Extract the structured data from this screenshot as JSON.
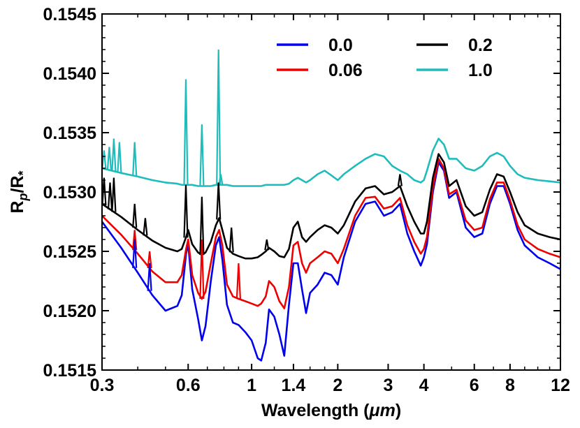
{
  "chart_data": {
    "type": "line",
    "title": "",
    "xlabel": "Wavelength (μm)",
    "xlabel_prefix": "Wavelength (",
    "xlabel_unit": "μm",
    "xlabel_suffix": ")",
    "ylabel": "Rp/R*",
    "ylabel_main": "R",
    "ylabel_p": "p",
    "ylabel_div": "/R",
    "ylabel_star": "*",
    "x_scale": "log",
    "xlim": [
      0.3,
      12
    ],
    "ylim": [
      0.1515,
      0.1545
    ],
    "x_ticks": [
      {
        "value": 0.3,
        "label": "0.3"
      },
      {
        "value": 0.6,
        "label": "0.6"
      },
      {
        "value": 1,
        "label": "1"
      },
      {
        "value": 1.4,
        "label": "1.4"
      },
      {
        "value": 2,
        "label": "2"
      },
      {
        "value": 3,
        "label": "3"
      },
      {
        "value": 4,
        "label": "4"
      },
      {
        "value": 6,
        "label": "6"
      },
      {
        "value": 8,
        "label": "8"
      },
      {
        "value": 12,
        "label": "12"
      }
    ],
    "y_ticks": [
      {
        "value": 0.1515,
        "label": "0.1515"
      },
      {
        "value": 0.152,
        "label": "0.1520"
      },
      {
        "value": 0.1525,
        "label": "0.1525"
      },
      {
        "value": 0.153,
        "label": "0.1530"
      },
      {
        "value": 0.1535,
        "label": "0.1535"
      },
      {
        "value": 0.154,
        "label": "0.1540"
      },
      {
        "value": 0.1545,
        "label": "0.1545"
      }
    ],
    "legend_position": "top-right",
    "series": [
      {
        "name": "0.0",
        "color": "#0000ee",
        "x": [
          0.3,
          0.35,
          0.4,
          0.45,
          0.5,
          0.55,
          0.57,
          0.59,
          0.6,
          0.62,
          0.65,
          0.67,
          0.69,
          0.72,
          0.75,
          0.77,
          0.79,
          0.82,
          0.86,
          0.9,
          0.95,
          1.0,
          1.05,
          1.08,
          1.12,
          1.15,
          1.2,
          1.25,
          1.3,
          1.35,
          1.4,
          1.45,
          1.5,
          1.55,
          1.6,
          1.7,
          1.8,
          1.9,
          2.0,
          2.1,
          2.3,
          2.5,
          2.7,
          2.9,
          3.1,
          3.3,
          3.5,
          3.7,
          3.9,
          4.0,
          4.1,
          4.3,
          4.5,
          4.7,
          4.9,
          5.2,
          5.6,
          6.0,
          6.4,
          6.8,
          7.2,
          7.6,
          8.0,
          8.5,
          9.0,
          10.0,
          11.0,
          12.0
        ],
        "y": [
          0.15275,
          0.15253,
          0.15232,
          0.15213,
          0.152,
          0.15204,
          0.15213,
          0.15248,
          0.15256,
          0.15218,
          0.15193,
          0.15175,
          0.15187,
          0.15225,
          0.15255,
          0.15262,
          0.15243,
          0.15205,
          0.1519,
          0.15188,
          0.15182,
          0.15175,
          0.1516,
          0.15158,
          0.15173,
          0.15201,
          0.15195,
          0.1518,
          0.15162,
          0.15205,
          0.1524,
          0.1524,
          0.15218,
          0.15198,
          0.15215,
          0.15222,
          0.15232,
          0.1523,
          0.15222,
          0.15245,
          0.15275,
          0.1529,
          0.15292,
          0.1528,
          0.15283,
          0.1529,
          0.15265,
          0.1525,
          0.15238,
          0.15245,
          0.15256,
          0.153,
          0.15325,
          0.15318,
          0.15295,
          0.153,
          0.1527,
          0.15262,
          0.15265,
          0.1529,
          0.15305,
          0.15305,
          0.1529,
          0.15268,
          0.15255,
          0.15245,
          0.1524,
          0.15235
        ]
      },
      {
        "name": "0.06",
        "color": "#ee0000",
        "x": [
          0.3,
          0.35,
          0.4,
          0.45,
          0.5,
          0.55,
          0.57,
          0.59,
          0.6,
          0.62,
          0.65,
          0.67,
          0.69,
          0.72,
          0.75,
          0.77,
          0.79,
          0.82,
          0.86,
          0.9,
          0.95,
          1.0,
          1.05,
          1.08,
          1.12,
          1.15,
          1.2,
          1.25,
          1.3,
          1.35,
          1.4,
          1.45,
          1.5,
          1.55,
          1.6,
          1.7,
          1.8,
          1.9,
          2.0,
          2.1,
          2.3,
          2.5,
          2.7,
          2.9,
          3.1,
          3.3,
          3.5,
          3.7,
          3.9,
          4.0,
          4.1,
          4.3,
          4.5,
          4.7,
          4.9,
          5.2,
          5.6,
          6.0,
          6.4,
          6.8,
          7.2,
          7.6,
          8.0,
          8.5,
          9.0,
          10.0,
          11.0,
          12.0
        ],
        "y": [
          0.1528,
          0.15264,
          0.15248,
          0.15233,
          0.15224,
          0.15224,
          0.1523,
          0.15252,
          0.1526,
          0.1523,
          0.15215,
          0.1521,
          0.15216,
          0.1524,
          0.15262,
          0.15268,
          0.15255,
          0.15222,
          0.15212,
          0.1521,
          0.15208,
          0.15206,
          0.15204,
          0.15206,
          0.15212,
          0.15225,
          0.1522,
          0.15208,
          0.15202,
          0.1522,
          0.15255,
          0.15258,
          0.1524,
          0.15232,
          0.1524,
          0.15245,
          0.1525,
          0.15248,
          0.1524,
          0.15252,
          0.1528,
          0.15295,
          0.15296,
          0.15286,
          0.15288,
          0.15295,
          0.15272,
          0.15258,
          0.15248,
          0.15252,
          0.15262,
          0.15304,
          0.15328,
          0.1532,
          0.15298,
          0.15302,
          0.15276,
          0.15268,
          0.1527,
          0.15294,
          0.15308,
          0.15308,
          0.15293,
          0.15272,
          0.1526,
          0.15252,
          0.15248,
          0.15245
        ]
      },
      {
        "name": "0.2",
        "color": "#000000",
        "x": [
          0.3,
          0.35,
          0.4,
          0.45,
          0.5,
          0.55,
          0.57,
          0.59,
          0.6,
          0.62,
          0.65,
          0.67,
          0.69,
          0.72,
          0.75,
          0.77,
          0.79,
          0.82,
          0.86,
          0.9,
          0.95,
          1.0,
          1.05,
          1.08,
          1.12,
          1.15,
          1.2,
          1.25,
          1.3,
          1.35,
          1.4,
          1.45,
          1.5,
          1.55,
          1.6,
          1.7,
          1.8,
          1.9,
          2.0,
          2.1,
          2.3,
          2.5,
          2.7,
          2.9,
          3.1,
          3.3,
          3.5,
          3.7,
          3.9,
          4.0,
          4.1,
          4.3,
          4.5,
          4.7,
          4.9,
          5.2,
          5.6,
          6.0,
          6.4,
          6.8,
          7.2,
          7.6,
          8.0,
          8.5,
          9.0,
          10.0,
          11.0,
          12.0
        ],
        "y": [
          0.1529,
          0.15279,
          0.15268,
          0.15259,
          0.15253,
          0.1525,
          0.15252,
          0.15262,
          0.15268,
          0.15256,
          0.15249,
          0.15247,
          0.15249,
          0.15258,
          0.15272,
          0.15278,
          0.15268,
          0.15253,
          0.15248,
          0.15246,
          0.15244,
          0.15244,
          0.15245,
          0.15247,
          0.1525,
          0.15253,
          0.1525,
          0.15246,
          0.15245,
          0.15252,
          0.1527,
          0.15275,
          0.15262,
          0.15258,
          0.15262,
          0.15268,
          0.15272,
          0.1527,
          0.15265,
          0.15272,
          0.15292,
          0.15303,
          0.15305,
          0.15298,
          0.153,
          0.15305,
          0.15288,
          0.15275,
          0.15265,
          0.15265,
          0.15275,
          0.15312,
          0.15332,
          0.15325,
          0.15305,
          0.1531,
          0.15288,
          0.1528,
          0.15283,
          0.15302,
          0.15315,
          0.15313,
          0.153,
          0.15283,
          0.15272,
          0.15265,
          0.15262,
          0.1526
        ]
      },
      {
        "name": "1.0",
        "color": "#1fbcbc",
        "x": [
          0.3,
          0.35,
          0.4,
          0.45,
          0.5,
          0.55,
          0.57,
          0.59,
          0.6,
          0.62,
          0.65,
          0.67,
          0.69,
          0.72,
          0.75,
          0.77,
          0.79,
          0.82,
          0.86,
          0.9,
          0.95,
          1.0,
          1.05,
          1.08,
          1.12,
          1.15,
          1.2,
          1.25,
          1.3,
          1.35,
          1.4,
          1.45,
          1.5,
          1.55,
          1.6,
          1.7,
          1.8,
          1.9,
          2.0,
          2.1,
          2.3,
          2.5,
          2.7,
          2.9,
          3.1,
          3.3,
          3.5,
          3.7,
          3.9,
          4.0,
          4.1,
          4.3,
          4.5,
          4.7,
          4.9,
          5.2,
          5.6,
          6.0,
          6.4,
          6.8,
          7.2,
          7.6,
          8.0,
          8.5,
          9.0,
          10.0,
          11.0,
          12.0
        ],
        "y": [
          0.1532,
          0.15316,
          0.15313,
          0.1531,
          0.15308,
          0.15307,
          0.15306,
          0.15306,
          0.15306,
          0.15306,
          0.15305,
          0.15305,
          0.15305,
          0.15305,
          0.15306,
          0.15306,
          0.15306,
          0.15306,
          0.15305,
          0.15305,
          0.15305,
          0.15305,
          0.15305,
          0.15305,
          0.15306,
          0.15306,
          0.15306,
          0.15306,
          0.15306,
          0.15307,
          0.1531,
          0.15312,
          0.1531,
          0.15308,
          0.1531,
          0.15315,
          0.15318,
          0.15314,
          0.1531,
          0.15315,
          0.15322,
          0.15328,
          0.15332,
          0.1533,
          0.15322,
          0.15318,
          0.15315,
          0.1531,
          0.15308,
          0.1531,
          0.15318,
          0.15335,
          0.15345,
          0.1534,
          0.15328,
          0.15328,
          0.1532,
          0.15318,
          0.15322,
          0.1533,
          0.15333,
          0.1533,
          0.15322,
          0.15315,
          0.15312,
          0.1531,
          0.15309,
          0.15308
        ]
      }
    ],
    "spikes": [
      {
        "series": "1.0",
        "x": 0.305,
        "y": 0.15335
      },
      {
        "series": "1.0",
        "x": 0.318,
        "y": 0.15338
      },
      {
        "series": "1.0",
        "x": 0.33,
        "y": 0.15345
      },
      {
        "series": "1.0",
        "x": 0.345,
        "y": 0.15342
      },
      {
        "series": "1.0",
        "x": 0.39,
        "y": 0.15342
      },
      {
        "series": "1.0",
        "x": 0.589,
        "y": 0.15395
      },
      {
        "series": "1.0",
        "x": 0.67,
        "y": 0.15357
      },
      {
        "series": "1.0",
        "x": 0.766,
        "y": 0.1542
      },
      {
        "series": "1.0",
        "x": 0.78,
        "y": 0.15315
      },
      {
        "series": "0.2",
        "x": 0.305,
        "y": 0.15312
      },
      {
        "series": "0.2",
        "x": 0.32,
        "y": 0.15308
      },
      {
        "series": "0.2",
        "x": 0.33,
        "y": 0.15312
      },
      {
        "series": "0.2",
        "x": 0.39,
        "y": 0.1529
      },
      {
        "series": "0.2",
        "x": 0.425,
        "y": 0.15278
      },
      {
        "series": "0.2",
        "x": 0.589,
        "y": 0.15306
      },
      {
        "series": "0.2",
        "x": 0.67,
        "y": 0.15296
      },
      {
        "series": "0.2",
        "x": 0.766,
        "y": 0.15308
      },
      {
        "series": "0.2",
        "x": 0.85,
        "y": 0.1527
      },
      {
        "series": "0.2",
        "x": 1.13,
        "y": 0.1526
      },
      {
        "series": "0.2",
        "x": 3.3,
        "y": 0.15315
      },
      {
        "series": "0.06",
        "x": 0.39,
        "y": 0.15268
      },
      {
        "series": "0.06",
        "x": 0.44,
        "y": 0.1525
      },
      {
        "series": "0.06",
        "x": 0.67,
        "y": 0.1526
      },
      {
        "series": "0.06",
        "x": 0.9,
        "y": 0.1524
      },
      {
        "series": "0.0",
        "x": 0.39,
        "y": 0.1526
      },
      {
        "series": "0.0",
        "x": 0.44,
        "y": 0.1524
      }
    ]
  }
}
